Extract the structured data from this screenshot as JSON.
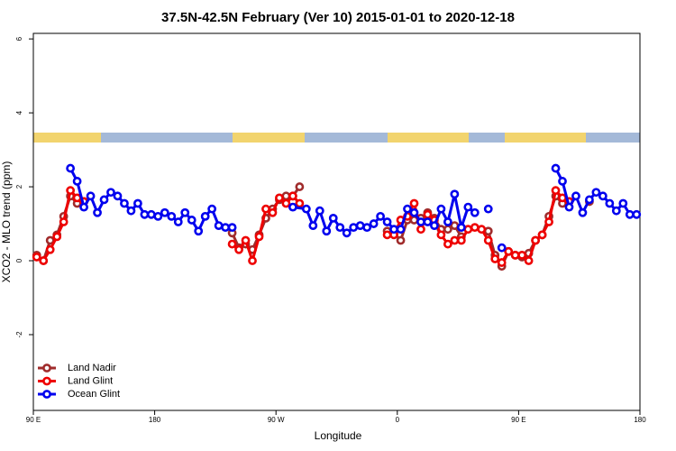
{
  "chart_data": {
    "type": "line",
    "title": "37.5N-42.5N February (Ver 10)   2015-01-01 to 2020-12-18",
    "x_label": "Longitude",
    "y_label": "XCO2 - MLO trend (ppm)",
    "xlim": [
      90,
      540
    ],
    "ylim": [
      -4.05,
      6.15
    ],
    "xticks": [
      {
        "value": 90,
        "label": "90 E"
      },
      180,
      {
        "value": 270,
        "label": "90 W"
      },
      {
        "value": 360,
        "label": "0"
      },
      {
        "value": 450,
        "label": "90 E"
      },
      {
        "value": 540,
        "label": "180"
      }
    ],
    "yticks": [
      -2,
      0,
      2,
      4,
      6
    ],
    "legend": "bottom-left",
    "series": [
      {
        "name": "Land Nadir",
        "color": "#a02c2c",
        "x": [
          92.5,
          97.5,
          102.5,
          107.5,
          112.5,
          117.5,
          122.5,
          127.5,
          132.5,
          237.5,
          242.5,
          247.5,
          252.5,
          257.5,
          262.5,
          267.5,
          272.5,
          277.5,
          282.5,
          287.5,
          292.5,
          352.5,
          357.5,
          362.5,
          367.5,
          372.5,
          377.5,
          382.5,
          387.5,
          392.5,
          397.5,
          402.5,
          407.5,
          412.5,
          427.5,
          432.5,
          437.5,
          442.5,
          447.5,
          452.5,
          457.5,
          462.5,
          467.5,
          472.5,
          477.5,
          482.5,
          487.5,
          492.5,
          502.5
        ],
        "values": [
          0.15,
          0,
          0.55,
          0.7,
          1.2,
          1.75,
          1.55,
          1.6,
          null,
          0.75,
          0.35,
          0.45,
          0.3,
          0.7,
          1.15,
          1.4,
          1.65,
          1.75,
          1.75,
          2.0,
          null,
          0.8,
          0.75,
          0.55,
          1.1,
          1.1,
          1.15,
          1.3,
          1.15,
          0.85,
          0.85,
          0.95,
          0.65,
          null,
          0.8,
          0.15,
          -0.15,
          0.25,
          0.15,
          0.1,
          0.2,
          0.55,
          0.7,
          1.2,
          1.75,
          1.55,
          1.6,
          null,
          1.6
        ]
      },
      {
        "name": "Land Glint",
        "color": "#ee0000",
        "x": [
          92.5,
          97.5,
          102.5,
          107.5,
          112.5,
          117.5,
          122.5,
          127.5,
          132.5,
          237.5,
          242.5,
          247.5,
          252.5,
          257.5,
          262.5,
          267.5,
          272.5,
          277.5,
          282.5,
          287.5,
          292.5,
          352.5,
          357.5,
          362.5,
          367.5,
          372.5,
          377.5,
          382.5,
          387.5,
          392.5,
          397.5,
          402.5,
          407.5,
          412.5,
          417.5,
          422.5,
          427.5,
          432.5,
          437.5,
          442.5,
          447.5,
          452.5,
          457.5,
          462.5,
          467.5,
          472.5,
          477.5,
          482.5,
          487.5
        ],
        "values": [
          0.1,
          0,
          0.3,
          0.65,
          1.05,
          1.9,
          1.7,
          1.6,
          null,
          0.45,
          0.3,
          0.55,
          0.0,
          0.65,
          1.4,
          1.3,
          1.7,
          1.55,
          1.75,
          1.55,
          null,
          0.7,
          0.7,
          1.1,
          1.2,
          1.55,
          0.85,
          1.25,
          1.1,
          0.7,
          0.45,
          0.55,
          0.55,
          0.85,
          0.9,
          0.85,
          0.55,
          0.05,
          -0.05,
          0.25,
          0.15,
          0.15,
          0,
          0.55,
          0.7,
          1.05,
          1.9,
          1.7,
          1.6
        ]
      },
      {
        "name": "Ocean Glint",
        "color": "#0000ee",
        "x": [
          117.5,
          122.5,
          127.5,
          132.5,
          137.5,
          142.5,
          147.5,
          152.5,
          157.5,
          162.5,
          167.5,
          172.5,
          177.5,
          182.5,
          187.5,
          192.5,
          197.5,
          202.5,
          207.5,
          212.5,
          217.5,
          222.5,
          227.5,
          232.5,
          237.5,
          242.5,
          282.5,
          292.5,
          297.5,
          302.5,
          307.5,
          312.5,
          317.5,
          322.5,
          327.5,
          332.5,
          337.5,
          342.5,
          347.5,
          352.5,
          357.5,
          362.5,
          367.5,
          372.5,
          377.5,
          382.5,
          387.5,
          392.5,
          397.5,
          402.5,
          407.5,
          412.5,
          417.5,
          422.5,
          427.5,
          432.5,
          437.5,
          442.5,
          477.5,
          482.5,
          487.5,
          492.5,
          497.5,
          502.5,
          507.5,
          512.5,
          517.5,
          522.5,
          527.5,
          532.5,
          537.5
        ],
        "values": [
          2.5,
          2.15,
          1.45,
          1.75,
          1.3,
          1.65,
          1.85,
          1.75,
          1.55,
          1.35,
          1.55,
          1.25,
          1.25,
          1.2,
          1.3,
          1.2,
          1.05,
          1.3,
          1.1,
          0.8,
          1.2,
          1.4,
          0.95,
          0.9,
          0.9,
          null,
          1.45,
          1.4,
          0.95,
          1.35,
          0.8,
          1.15,
          0.9,
          0.75,
          0.9,
          0.95,
          0.9,
          1.0,
          1.2,
          1.05,
          0.85,
          0.85,
          1.4,
          1.3,
          1.05,
          1.05,
          0.95,
          1.4,
          1.05,
          1.8,
          0.9,
          1.45,
          1.3,
          null,
          1.4,
          null,
          0.35,
          null,
          2.5,
          2.15,
          1.45,
          1.75,
          1.3,
          1.65,
          1.85,
          1.75,
          1.55,
          1.35,
          1.55,
          1.25,
          1.25
        ]
      }
    ]
  }
}
